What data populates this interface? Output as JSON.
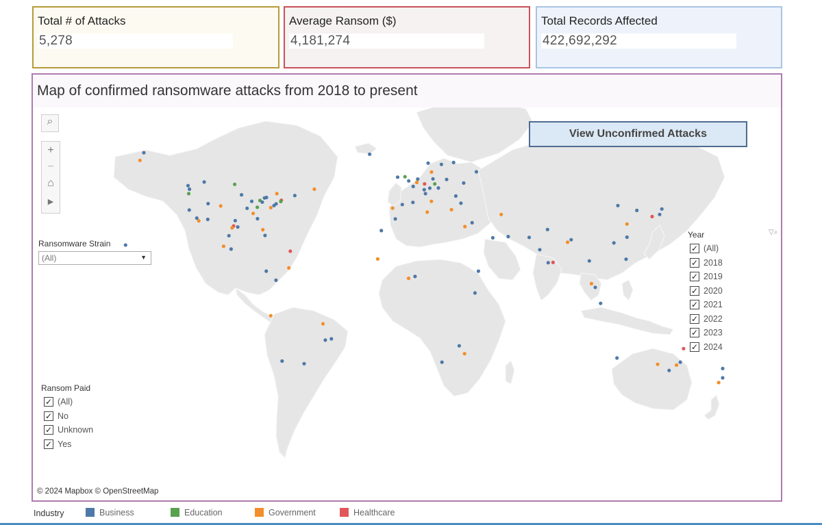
{
  "kpis": {
    "attacks": {
      "title": "Total # of Attacks",
      "value": "5,278"
    },
    "ransom": {
      "title": "Average Ransom ($)",
      "value": "4,181,274"
    },
    "records": {
      "title": "Total Records Affected",
      "value": "422,692,292"
    }
  },
  "map": {
    "title": "Map of confirmed ransomware attacks from 2018 to present",
    "view_unconfirmed_label": "View Unconfirmed Attacks",
    "attribution": "© 2024 Mapbox  © OpenStreetMap",
    "toolbar": {
      "search": "⌕",
      "zoom_in": "+",
      "zoom_out": "−",
      "home": "⌂",
      "play": "▶"
    }
  },
  "filters": {
    "strain": {
      "title": "Ransomware Strain",
      "selected": "(All)"
    },
    "ransom_paid": {
      "title": "Ransom Paid",
      "options": [
        "(All)",
        "No",
        "Unknown",
        "Yes"
      ]
    },
    "year": {
      "title": "Year",
      "options": [
        "(All)",
        "2018",
        "2019",
        "2020",
        "2021",
        "2022",
        "2023",
        "2024"
      ]
    }
  },
  "legend": {
    "title": "Industry",
    "items": [
      {
        "label": "Business",
        "color": "#4e79a7"
      },
      {
        "label": "Education",
        "color": "#59a14f"
      },
      {
        "label": "Government",
        "color": "#f28e2b"
      },
      {
        "label": "Healthcare",
        "color": "#e15759"
      }
    ]
  },
  "colors": {
    "land": "#e6e6e6",
    "border": "#f8f8f8",
    "water": "#ffffff"
  },
  "map_points": [
    {
      "lon": -122.4,
      "lat": 37.8,
      "industry": "Business"
    },
    {
      "lon": -118.2,
      "lat": 34.0,
      "industry": "Business"
    },
    {
      "lon": -117.1,
      "lat": 32.7,
      "industry": "Government"
    },
    {
      "lon": -122.3,
      "lat": 47.6,
      "industry": "Business"
    },
    {
      "lon": -122.7,
      "lat": 45.5,
      "industry": "Education"
    },
    {
      "lon": -112.1,
      "lat": 33.4,
      "industry": "Business"
    },
    {
      "lon": -104.9,
      "lat": 39.7,
      "industry": "Government"
    },
    {
      "lon": -111.9,
      "lat": 40.8,
      "industry": "Business"
    },
    {
      "lon": -97.7,
      "lat": 30.3,
      "industry": "Healthcare"
    },
    {
      "lon": -96.8,
      "lat": 32.8,
      "industry": "Business"
    },
    {
      "lon": -95.4,
      "lat": 29.8,
      "industry": "Business"
    },
    {
      "lon": -98.5,
      "lat": 29.4,
      "industry": "Government"
    },
    {
      "lon": -90.2,
      "lat": 38.6,
      "industry": "Business"
    },
    {
      "lon": -87.6,
      "lat": 41.9,
      "industry": "Business"
    },
    {
      "lon": -83.0,
      "lat": 42.3,
      "industry": "Education"
    },
    {
      "lon": -84.4,
      "lat": 33.7,
      "industry": "Business"
    },
    {
      "lon": -80.2,
      "lat": 25.8,
      "industry": "Business"
    },
    {
      "lon": -81.4,
      "lat": 28.5,
      "industry": "Government"
    },
    {
      "lon": -77.0,
      "lat": 38.9,
      "industry": "Government"
    },
    {
      "lon": -75.2,
      "lat": 39.9,
      "industry": "Business"
    },
    {
      "lon": -74.0,
      "lat": 40.7,
      "industry": "Business"
    },
    {
      "lon": -71.1,
      "lat": 42.4,
      "industry": "Healthcare"
    },
    {
      "lon": -79.4,
      "lat": 43.7,
      "industry": "Business"
    },
    {
      "lon": -73.6,
      "lat": 45.5,
      "industry": "Government"
    },
    {
      "lon": -123.1,
      "lat": 49.3,
      "industry": "Business"
    },
    {
      "lon": -114.1,
      "lat": 51.0,
      "industry": "Business"
    },
    {
      "lon": -97.1,
      "lat": 49.9,
      "industry": "Education"
    },
    {
      "lon": -99.1,
      "lat": 19.4,
      "industry": "Business"
    },
    {
      "lon": -103.3,
      "lat": 20.7,
      "industry": "Government"
    },
    {
      "lon": -100.3,
      "lat": 25.7,
      "industry": "Business"
    },
    {
      "lon": -157.9,
      "lat": 21.3,
      "industry": "Business"
    },
    {
      "lon": -149.9,
      "lat": 61.2,
      "industry": "Government"
    },
    {
      "lon": -147.7,
      "lat": 64.8,
      "industry": "Business"
    },
    {
      "lon": -74.1,
      "lat": 4.7,
      "industry": "Business"
    },
    {
      "lon": -77.0,
      "lat": -12.0,
      "industry": "Government"
    },
    {
      "lon": -46.6,
      "lat": -23.5,
      "industry": "Business"
    },
    {
      "lon": -43.2,
      "lat": -22.9,
      "industry": "Business"
    },
    {
      "lon": -47.9,
      "lat": -15.8,
      "industry": "Government"
    },
    {
      "lon": -58.4,
      "lat": -34.6,
      "industry": "Business"
    },
    {
      "lon": -70.7,
      "lat": -33.4,
      "industry": "Business"
    },
    {
      "lon": -66.9,
      "lat": 10.5,
      "industry": "Government"
    },
    {
      "lon": -79.5,
      "lat": 9.0,
      "industry": "Business"
    },
    {
      "lon": -66.1,
      "lat": 18.4,
      "industry": "Healthcare"
    },
    {
      "lon": -0.1,
      "lat": 51.5,
      "industry": "Business"
    },
    {
      "lon": -2.2,
      "lat": 53.5,
      "industry": "Education"
    },
    {
      "lon": -6.3,
      "lat": 53.3,
      "industry": "Business"
    },
    {
      "lon": 2.35,
      "lat": 48.9,
      "industry": "Business"
    },
    {
      "lon": 4.9,
      "lat": 52.4,
      "industry": "Business"
    },
    {
      "lon": 4.4,
      "lat": 50.8,
      "industry": "Government"
    },
    {
      "lon": 13.4,
      "lat": 52.5,
      "industry": "Business"
    },
    {
      "lon": 11.6,
      "lat": 48.1,
      "industry": "Business"
    },
    {
      "lon": 8.7,
      "lat": 50.1,
      "industry": "Healthcare"
    },
    {
      "lon": 9.2,
      "lat": 45.5,
      "industry": "Business"
    },
    {
      "lon": 12.5,
      "lat": 41.9,
      "industry": "Government"
    },
    {
      "lon": -3.7,
      "lat": 40.4,
      "industry": "Business"
    },
    {
      "lon": 2.2,
      "lat": 41.4,
      "industry": "Business"
    },
    {
      "lon": -9.1,
      "lat": 38.7,
      "industry": "Government"
    },
    {
      "lon": 8.5,
      "lat": 47.4,
      "industry": "Business"
    },
    {
      "lon": 16.4,
      "lat": 48.2,
      "industry": "Business"
    },
    {
      "lon": 21.0,
      "lat": 52.2,
      "industry": "Business"
    },
    {
      "lon": 14.4,
      "lat": 50.1,
      "industry": "Education"
    },
    {
      "lon": 18.1,
      "lat": 59.3,
      "industry": "Business"
    },
    {
      "lon": 10.7,
      "lat": 59.9,
      "industry": "Business"
    },
    {
      "lon": 12.6,
      "lat": 55.7,
      "industry": "Government"
    },
    {
      "lon": 24.9,
      "lat": 60.2,
      "industry": "Business"
    },
    {
      "lon": 26.1,
      "lat": 44.4,
      "industry": "Business"
    },
    {
      "lon": 23.7,
      "lat": 37.98,
      "industry": "Government"
    },
    {
      "lon": 28.98,
      "lat": 41.0,
      "industry": "Business"
    },
    {
      "lon": 30.5,
      "lat": 50.5,
      "industry": "Business"
    },
    {
      "lon": 37.6,
      "lat": 55.8,
      "industry": "Business"
    },
    {
      "lon": 35.2,
      "lat": 31.8,
      "industry": "Business"
    },
    {
      "lon": 31.2,
      "lat": 30.0,
      "industry": "Government"
    },
    {
      "lon": 46.7,
      "lat": 24.7,
      "industry": "Business"
    },
    {
      "lon": 55.3,
      "lat": 25.3,
      "industry": "Business"
    },
    {
      "lon": 51.4,
      "lat": 35.7,
      "industry": "Government"
    },
    {
      "lon": 72.9,
      "lat": 19.1,
      "industry": "Business"
    },
    {
      "lon": 77.2,
      "lat": 28.6,
      "industry": "Business"
    },
    {
      "lon": 77.6,
      "lat": 12.97,
      "industry": "Business"
    },
    {
      "lon": 80.3,
      "lat": 13.1,
      "industry": "Healthcare"
    },
    {
      "lon": 88.4,
      "lat": 22.6,
      "industry": "Government"
    },
    {
      "lon": 67.0,
      "lat": 24.9,
      "industry": "Business"
    },
    {
      "lon": 90.4,
      "lat": 23.8,
      "industry": "Business"
    },
    {
      "lon": 100.5,
      "lat": 13.8,
      "industry": "Business"
    },
    {
      "lon": 103.8,
      "lat": 1.35,
      "industry": "Business"
    },
    {
      "lon": 101.7,
      "lat": 3.1,
      "industry": "Government"
    },
    {
      "lon": 106.8,
      "lat": -6.2,
      "industry": "Business"
    },
    {
      "lon": 121.0,
      "lat": 14.6,
      "industry": "Business"
    },
    {
      "lon": 114.2,
      "lat": 22.3,
      "industry": "Business"
    },
    {
      "lon": 121.5,
      "lat": 25.0,
      "industry": "Business"
    },
    {
      "lon": 121.5,
      "lat": 31.2,
      "industry": "Government"
    },
    {
      "lon": 116.4,
      "lat": 39.9,
      "industry": "Business"
    },
    {
      "lon": 127.0,
      "lat": 37.6,
      "industry": "Business"
    },
    {
      "lon": 139.7,
      "lat": 35.7,
      "industry": "Business"
    },
    {
      "lon": 135.5,
      "lat": 34.7,
      "industry": "Healthcare"
    },
    {
      "lon": 140.9,
      "lat": 38.3,
      "industry": "Business"
    },
    {
      "lon": 151.2,
      "lat": -33.9,
      "industry": "Business"
    },
    {
      "lon": 144.96,
      "lat": -37.8,
      "industry": "Business"
    },
    {
      "lon": 153.0,
      "lat": -27.5,
      "industry": "Healthcare"
    },
    {
      "lon": 115.9,
      "lat": -31.95,
      "industry": "Business"
    },
    {
      "lon": 138.6,
      "lat": -34.9,
      "industry": "Government"
    },
    {
      "lon": 149.1,
      "lat": -35.3,
      "industry": "Government"
    },
    {
      "lon": 174.8,
      "lat": -36.9,
      "industry": "Business"
    },
    {
      "lon": 174.8,
      "lat": -41.3,
      "industry": "Business"
    },
    {
      "lon": 172.6,
      "lat": -43.5,
      "industry": "Government"
    },
    {
      "lon": 28.0,
      "lat": -26.2,
      "industry": "Business"
    },
    {
      "lon": 18.4,
      "lat": -33.9,
      "industry": "Business"
    },
    {
      "lon": 31.0,
      "lat": -29.9,
      "industry": "Government"
    },
    {
      "lon": 36.8,
      "lat": -1.3,
      "industry": "Business"
    },
    {
      "lon": 3.4,
      "lat": 6.5,
      "industry": "Business"
    },
    {
      "lon": -0.2,
      "lat": 5.6,
      "industry": "Government"
    },
    {
      "lon": -7.6,
      "lat": 33.6,
      "industry": "Business"
    },
    {
      "lon": 10.2,
      "lat": 36.8,
      "industry": "Government"
    },
    {
      "lon": -17.4,
      "lat": 14.7,
      "industry": "Government"
    },
    {
      "lon": 38.7,
      "lat": 9.0,
      "industry": "Business"
    },
    {
      "lon": -15.4,
      "lat": 28.1,
      "industry": "Business"
    },
    {
      "lon": -21.9,
      "lat": 64.1,
      "industry": "Business"
    },
    {
      "lon": -52.7,
      "lat": 47.6,
      "industry": "Government"
    },
    {
      "lon": -63.6,
      "lat": 44.6,
      "industry": "Business"
    },
    {
      "lon": -80.5,
      "lat": 43.5,
      "industry": "Business"
    },
    {
      "lon": -84.5,
      "lat": 39.1,
      "industry": "Education"
    },
    {
      "lon": -93.3,
      "lat": 44.98,
      "industry": "Business"
    },
    {
      "lon": -86.8,
      "lat": 36.2,
      "industry": "Government"
    },
    {
      "lon": -81.7,
      "lat": 41.5,
      "industry": "Business"
    },
    {
      "lon": -71.4,
      "lat": 41.8,
      "industry": "Education"
    }
  ]
}
